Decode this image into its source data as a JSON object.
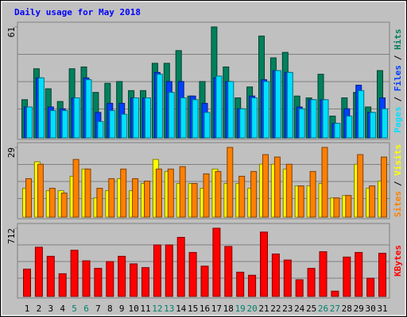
{
  "title": "Daily usage for May 2018",
  "legend_separator": "/",
  "chart_data": [
    {
      "type": "bar",
      "ylim": [
        0,
        61
      ],
      "yticks": [
        61
      ],
      "series": [
        {
          "name": "Hits",
          "color": "#00805c",
          "values": [
            21,
            38,
            27,
            20,
            38,
            39,
            25,
            30,
            31,
            26,
            26,
            41,
            41,
            48,
            23,
            31,
            61,
            39,
            22,
            28,
            56,
            44,
            47,
            23,
            22,
            35,
            12,
            22,
            25,
            17,
            37
          ]
        },
        {
          "name": "Files",
          "color": "#0040ff",
          "values": [
            17,
            33,
            17,
            16,
            22,
            33,
            14,
            19,
            19,
            22,
            22,
            36,
            31,
            31,
            23,
            19,
            33,
            31,
            16,
            23,
            32,
            37,
            36,
            17,
            21,
            21,
            8,
            16,
            29,
            14,
            22
          ]
        },
        {
          "name": "Pages",
          "color": "#00e0ff",
          "values": [
            17,
            33,
            15,
            15,
            22,
            32,
            9,
            15,
            13,
            22,
            22,
            35,
            25,
            22,
            21,
            14,
            34,
            31,
            16,
            22,
            31,
            37,
            36,
            16,
            21,
            21,
            8,
            12,
            26,
            14,
            16
          ]
        }
      ]
    },
    {
      "type": "bar",
      "ylim": [
        0,
        29
      ],
      "yticks": [
        29
      ],
      "series": [
        {
          "name": "Visits",
          "color": "#ffff00",
          "values": [
            12,
            23,
            11,
            11,
            17,
            20,
            8,
            11,
            16,
            11,
            14,
            24,
            19,
            14,
            14,
            12,
            20,
            14,
            14,
            12,
            22,
            22,
            20,
            13,
            13,
            14,
            8,
            9,
            22,
            12,
            15
          ]
        },
        {
          "name": "Sites",
          "color": "#ff8000",
          "values": [
            16,
            22,
            12,
            10,
            24,
            20,
            12,
            16,
            20,
            16,
            15,
            20,
            20,
            21,
            14,
            18,
            19,
            29,
            17,
            19,
            26,
            25,
            22,
            13,
            19,
            29,
            8,
            9,
            26,
            13,
            25
          ]
        }
      ]
    },
    {
      "type": "bar",
      "ylim": [
        0,
        712
      ],
      "yticks": [
        712
      ],
      "categories": [
        "1",
        "2",
        "3",
        "4",
        "5",
        "6",
        "7",
        "8",
        "9",
        "10",
        "11",
        "12",
        "13",
        "14",
        "15",
        "16",
        "17",
        "18",
        "19",
        "20",
        "21",
        "22",
        "23",
        "24",
        "25",
        "26",
        "27",
        "28",
        "29",
        "30",
        "31"
      ],
      "category_colors": [
        "#000000",
        "#000000",
        "#000000",
        "#000000",
        "#00806c",
        "#00806c",
        "#000000",
        "#000000",
        "#000000",
        "#000000",
        "#000000",
        "#00806c",
        "#00806c",
        "#000000",
        "#000000",
        "#000000",
        "#000000",
        "#000000",
        "#00806c",
        "#00806c",
        "#000000",
        "#000000",
        "#000000",
        "#000000",
        "#000000",
        "#00806c",
        "#00806c",
        "#000000",
        "#000000",
        "#000000",
        "#000000"
      ],
      "series": [
        {
          "name": "KBytes",
          "color": "#ff0000",
          "values": [
            285,
            514,
            419,
            237,
            482,
            372,
            293,
            364,
            419,
            340,
            301,
            538,
            538,
            617,
            459,
            316,
            712,
            522,
            253,
            221,
            672,
            443,
            380,
            174,
            293,
            467,
            55,
            411,
            459,
            190,
            451
          ]
        }
      ]
    }
  ]
}
